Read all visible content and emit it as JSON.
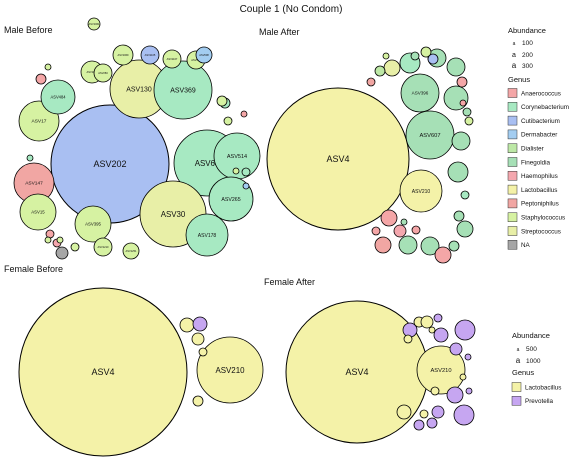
{
  "figure_title": "Couple 1 (No Condom)",
  "palette": {
    "Anaerococcus": "#f4a6a7",
    "Corynebacterium": "#a7e9c2",
    "Cutibacterium": "#a9bff2",
    "Dermabacter": "#a3cdf1",
    "Dialister": "#bde8a6",
    "Finegoldia": "#a6e0b6",
    "Haemophilus": "#f4a7ae",
    "Lactobacillus": "#f4f2a8",
    "Peptoniphilus": "#f1a6a3",
    "Staphylococcus": "#d6f2a2",
    "Streptococcus": "#e8efa7",
    "NA": "#a6a6a6",
    "Prevotella": "#c6a6f1"
  },
  "legends": [
    {
      "size_title": "Abundance",
      "size_items": [
        {
          "label": "100",
          "glyph": "a"
        },
        {
          "label": "200",
          "glyph": "a"
        },
        {
          "label": "300",
          "glyph": "a"
        }
      ],
      "genus_title": "Genus",
      "genus_items": [
        "Anaerococcus",
        "Corynebacterium",
        "Cutibacterium",
        "Dermabacter",
        "Dialister",
        "Finegoldia",
        "Haemophilus",
        "Lactobacillus",
        "Peptoniphilus",
        "Staphylococcus",
        "Streptococcus",
        "NA"
      ]
    },
    {
      "size_title": "Abundance",
      "size_items": [
        {
          "label": "500",
          "glyph": "a"
        },
        {
          "label": "1000",
          "glyph": "a"
        }
      ],
      "genus_title": "Genus",
      "genus_items": [
        "Lactobacillus",
        "Prevotella"
      ]
    }
  ],
  "chart_data": [
    {
      "type": "bubble",
      "title": "Male Before",
      "bubbles": [
        {
          "label": "ASV202",
          "genus": "Cutibacterium",
          "abundance": 450
        },
        {
          "label": "ASV68",
          "genus": "Corynebacterium",
          "abundance": 185
        },
        {
          "label": "ASV30",
          "genus": "Streptococcus",
          "abundance": 160
        },
        {
          "label": "ASV130",
          "genus": "Streptococcus",
          "abundance": 110
        },
        {
          "label": "ASV369",
          "genus": "Corynebacterium",
          "abundance": 110
        },
        {
          "label": "ASV514",
          "genus": "Corynebacterium",
          "abundance": 70
        },
        {
          "label": "ASV265",
          "genus": "Corynebacterium",
          "abundance": 65
        },
        {
          "label": "ASV178",
          "genus": "Corynebacterium",
          "abundance": 65
        },
        {
          "label": "ASV17",
          "genus": "Staphylococcus",
          "abundance": 60
        },
        {
          "label": "ASV147",
          "genus": "Peptoniphilus",
          "abundance": 60
        },
        {
          "label": "ASV15",
          "genus": "Staphylococcus",
          "abundance": 50
        },
        {
          "label": "ASV395",
          "genus": "Staphylococcus",
          "abundance": 50
        },
        {
          "label": "ASV484",
          "genus": "Corynebacterium",
          "abundance": 50
        },
        {
          "label": "ASV1050",
          "genus": "Staphylococcus",
          "abundance": 20
        },
        {
          "label": "ASV283",
          "genus": "Staphylococcus",
          "abundance": 20
        },
        {
          "label": "ASV1069",
          "genus": "Staphylococcus",
          "abundance": 18
        },
        {
          "label": "ASV1105",
          "genus": "Cutibacterium",
          "abundance": 16
        },
        {
          "label": "ASV1167",
          "genus": "Staphylococcus",
          "abundance": 14
        },
        {
          "label": "ASV574",
          "genus": "Staphylococcus",
          "abundance": 14
        },
        {
          "label": "ASV608",
          "genus": "Dermabacter",
          "abundance": 13
        },
        {
          "label": "ASV1210",
          "genus": "Staphylococcus",
          "abundance": 12
        },
        {
          "label": "ASV1251",
          "genus": "Staphylococcus",
          "abundance": 10
        },
        {
          "label": "ASV1061",
          "genus": "Staphylococcus",
          "abundance": 8
        },
        {
          "label": "",
          "genus": "Corynebacterium",
          "abundance": 6
        },
        {
          "label": "",
          "genus": "Staphylococcus",
          "abundance": 6
        },
        {
          "label": "",
          "genus": "Anaerococcus",
          "abundance": 5
        },
        {
          "label": "",
          "genus": "Staphylococcus",
          "abundance": 4
        },
        {
          "label": "",
          "genus": "Haemophilus",
          "abundance": 4
        },
        {
          "label": "",
          "genus": "Staphylococcus",
          "abundance": 4
        },
        {
          "label": "",
          "genus": "Anaerococcus",
          "abundance": 3
        },
        {
          "label": "",
          "genus": "Staphylococcus",
          "abundance": 3
        },
        {
          "label": "",
          "genus": "Corynebacterium",
          "abundance": 3
        },
        {
          "label": "",
          "genus": "NA",
          "abundance": 3
        },
        {
          "label": "",
          "genus": "Anaerococcus",
          "abundance": 2
        },
        {
          "label": "",
          "genus": "Staphylococcus",
          "abundance": 2
        },
        {
          "label": "",
          "genus": "Dermabacter",
          "abundance": 2
        },
        {
          "label": "",
          "genus": "Staphylococcus",
          "abundance": 2
        },
        {
          "label": "",
          "genus": "Corynebacterium",
          "abundance": 2
        },
        {
          "label": "",
          "genus": "Staphylococcus",
          "abundance": 1
        }
      ]
    },
    {
      "type": "bubble",
      "title": "Male After",
      "bubbles": [
        {
          "label": "ASV4",
          "genus": "Lactobacillus",
          "abundance": 1100
        },
        {
          "label": "ASV607",
          "genus": "Finegoldia",
          "abundance": 120
        },
        {
          "label": "ASV396",
          "genus": "Finegoldia",
          "abundance": 60
        },
        {
          "label": "ASV210",
          "genus": "Lactobacillus",
          "abundance": 60
        },
        {
          "label": "",
          "genus": "Finegoldia",
          "abundance": 30
        },
        {
          "label": "",
          "genus": "Finegoldia",
          "abundance": 25
        },
        {
          "label": "",
          "genus": "Finegoldia",
          "abundance": 20
        },
        {
          "label": "",
          "genus": "Finegoldia",
          "abundance": 18
        },
        {
          "label": "",
          "genus": "Finegoldia",
          "abundance": 15
        },
        {
          "label": "",
          "genus": "Anaerococcus",
          "abundance": 12
        },
        {
          "label": "",
          "genus": "Finegoldia",
          "abundance": 12
        },
        {
          "label": "",
          "genus": "Corynebacterium",
          "abundance": 10
        },
        {
          "label": "",
          "genus": "Anaerococcus",
          "abundance": 10
        },
        {
          "label": "",
          "genus": "Finegoldia",
          "abundance": 9
        },
        {
          "label": "",
          "genus": "Peptoniphilus",
          "abundance": 9
        },
        {
          "label": "",
          "genus": "Streptococcus",
          "abundance": 8
        },
        {
          "label": "",
          "genus": "Finegoldia",
          "abundance": 8
        },
        {
          "label": "",
          "genus": "Anaerococcus",
          "abundance": 7
        },
        {
          "label": "",
          "genus": "Haemophilus",
          "abundance": 7
        },
        {
          "label": "",
          "genus": "Finegoldia",
          "abundance": 6
        },
        {
          "label": "",
          "genus": "Cutibacterium",
          "abundance": 6
        },
        {
          "label": "",
          "genus": "Staphylococcus",
          "abundance": 6
        },
        {
          "label": "",
          "genus": "Anaerococcus",
          "abundance": 5
        },
        {
          "label": "",
          "genus": "Dialister",
          "abundance": 5
        },
        {
          "label": "",
          "genus": "Finegoldia",
          "abundance": 5
        },
        {
          "label": "",
          "genus": "Corynebacterium",
          "abundance": 4
        },
        {
          "label": "",
          "genus": "Anaerococcus",
          "abundance": 4
        },
        {
          "label": "",
          "genus": "Finegoldia",
          "abundance": 4
        },
        {
          "label": "",
          "genus": "Staphylococcus",
          "abundance": 3
        },
        {
          "label": "",
          "genus": "Peptoniphilus",
          "abundance": 3
        },
        {
          "label": "",
          "genus": "Finegoldia",
          "abundance": 3
        },
        {
          "label": "",
          "genus": "Anaerococcus",
          "abundance": 2
        },
        {
          "label": "",
          "genus": "Staphylococcus",
          "abundance": 2
        },
        {
          "label": "",
          "genus": "Finegoldia",
          "abundance": 2
        }
      ]
    },
    {
      "type": "bubble",
      "title": "Female Before",
      "bubbles": [
        {
          "label": "ASV4",
          "genus": "Lactobacillus",
          "abundance": 1400
        },
        {
          "label": "ASV210",
          "genus": "Lactobacillus",
          "abundance": 140
        },
        {
          "label": "",
          "genus": "Lactobacillus",
          "abundance": 5
        },
        {
          "label": "",
          "genus": "Prevotella",
          "abundance": 4
        },
        {
          "label": "",
          "genus": "Lactobacillus",
          "abundance": 3
        },
        {
          "label": "",
          "genus": "Lactobacillus",
          "abundance": 2
        },
        {
          "label": "",
          "genus": "Lactobacillus",
          "abundance": 2
        }
      ]
    },
    {
      "type": "bubble",
      "title": "Female After",
      "bubbles": [
        {
          "label": "ASV4",
          "genus": "Lactobacillus",
          "abundance": 1100
        },
        {
          "label": "ASV210",
          "genus": "Lactobacillus",
          "abundance": 120
        },
        {
          "label": "",
          "genus": "Prevotella",
          "abundance": 12
        },
        {
          "label": "",
          "genus": "Prevotella",
          "abundance": 11
        },
        {
          "label": "",
          "genus": "Prevotella",
          "abundance": 10
        },
        {
          "label": "",
          "genus": "Prevotella",
          "abundance": 9
        },
        {
          "label": "",
          "genus": "Prevotella",
          "abundance": 9
        },
        {
          "label": "",
          "genus": "Lactobacillus",
          "abundance": 8
        },
        {
          "label": "",
          "genus": "Prevotella",
          "abundance": 8
        },
        {
          "label": "",
          "genus": "Prevotella",
          "abundance": 7
        },
        {
          "label": "",
          "genus": "Lactobacillus",
          "abundance": 6
        },
        {
          "label": "",
          "genus": "Prevotella",
          "abundance": 6
        },
        {
          "label": "",
          "genus": "Lactobacillus",
          "abundance": 5
        },
        {
          "label": "",
          "genus": "Prevotella",
          "abundance": 5
        },
        {
          "label": "",
          "genus": "Lactobacillus",
          "abundance": 4
        },
        {
          "label": "",
          "genus": "Prevotella",
          "abundance": 4
        },
        {
          "label": "",
          "genus": "Lactobacillus",
          "abundance": 3
        },
        {
          "label": "",
          "genus": "Prevotella",
          "abundance": 3
        },
        {
          "label": "",
          "genus": "Lactobacillus",
          "abundance": 2
        },
        {
          "label": "",
          "genus": "Lactobacillus",
          "abundance": 2
        },
        {
          "label": "",
          "genus": "Prevotella",
          "abundance": 2
        },
        {
          "label": "",
          "genus": "Lactobacillus",
          "abundance": 1
        }
      ]
    }
  ]
}
